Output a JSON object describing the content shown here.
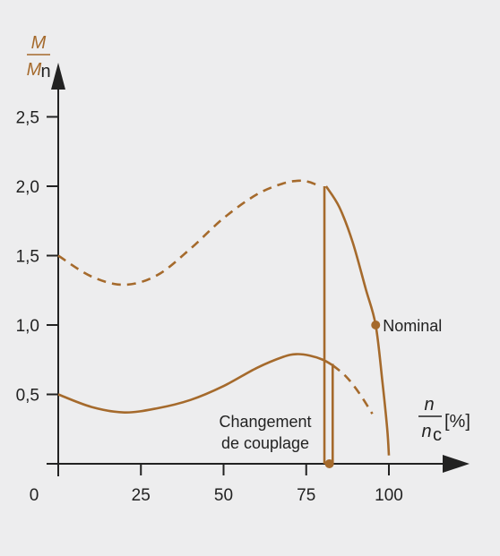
{
  "chart_data": {
    "type": "line",
    "y_axis_label": {
      "numerator": "M",
      "denominator": "M",
      "denominator_sub": "n"
    },
    "x_axis_label": {
      "numerator": "n",
      "denominator": "n",
      "denominator_sub": "c",
      "unit": "[%]"
    },
    "xlim": [
      0,
      105
    ],
    "ylim": [
      0,
      2.8
    ],
    "x_ticks": [
      {
        "value": 0,
        "label": "0"
      },
      {
        "value": 25,
        "label": "25"
      },
      {
        "value": 50,
        "label": "50"
      },
      {
        "value": 75,
        "label": "75"
      },
      {
        "value": 100,
        "label": "100"
      }
    ],
    "y_ticks": [
      {
        "value": 0.5,
        "label": "0,5"
      },
      {
        "value": 1.0,
        "label": "1,0"
      },
      {
        "value": 1.5,
        "label": "1,5"
      },
      {
        "value": 2.0,
        "label": "2,0"
      },
      {
        "value": 2.5,
        "label": "2,5"
      }
    ],
    "color": "#a56a2c",
    "series": [
      {
        "style": "dashed",
        "points": [
          [
            0,
            1.5
          ],
          [
            10,
            1.35
          ],
          [
            20,
            1.29
          ],
          [
            30,
            1.36
          ],
          [
            40,
            1.55
          ],
          [
            50,
            1.77
          ],
          [
            60,
            1.94
          ],
          [
            68,
            2.02
          ],
          [
            73,
            2.04
          ],
          [
            76,
            2.03
          ],
          [
            79,
            2.0
          ]
        ]
      },
      {
        "style": "solid",
        "points": [
          [
            81,
            2.0
          ],
          [
            85,
            1.85
          ],
          [
            89,
            1.6
          ],
          [
            93,
            1.26
          ],
          [
            96,
            1.0
          ],
          [
            98,
            0.6
          ],
          [
            99.5,
            0.25
          ],
          [
            100,
            0.06
          ]
        ]
      },
      {
        "style": "solid",
        "points": [
          [
            0,
            0.5
          ],
          [
            10,
            0.41
          ],
          [
            20,
            0.37
          ],
          [
            30,
            0.4
          ],
          [
            40,
            0.46
          ],
          [
            50,
            0.56
          ],
          [
            60,
            0.69
          ],
          [
            68,
            0.77
          ],
          [
            72,
            0.79
          ],
          [
            76,
            0.78
          ],
          [
            80,
            0.75
          ],
          [
            83,
            0.71
          ]
        ]
      },
      {
        "style": "dashed",
        "points": [
          [
            83,
            0.71
          ],
          [
            87,
            0.63
          ],
          [
            91,
            0.51
          ],
          [
            95,
            0.36
          ]
        ]
      },
      {
        "style": "solid",
        "points": [
          [
            80.5,
            0.0
          ],
          [
            80.5,
            2.0
          ]
        ]
      },
      {
        "style": "solid",
        "points": [
          [
            83,
            0.0
          ],
          [
            83,
            0.72
          ]
        ]
      }
    ],
    "markers": [
      {
        "x": 96,
        "y": 1.0,
        "label": "Nominal"
      },
      {
        "x": 82,
        "y": 0.0,
        "label": ""
      }
    ],
    "annotations": [
      {
        "lines": [
          "Changement",
          "de couplage"
        ],
        "x": 80,
        "y": 0.3
      }
    ]
  }
}
